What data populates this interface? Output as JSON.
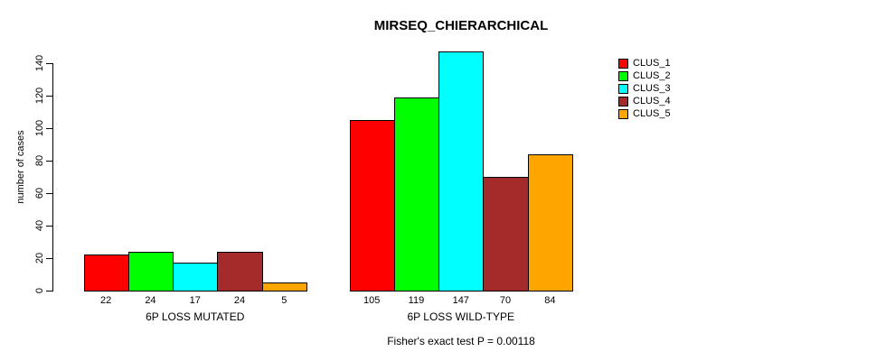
{
  "chart_data": {
    "type": "bar",
    "grouped": true,
    "title": "MIRSEQ_CHIERARCHICAL",
    "xlabel": "",
    "ylabel": "number of cases",
    "annotation": "Fisher's exact test P = 0.00118",
    "categories": [
      "6P LOSS MUTATED",
      "6P LOSS WILD-TYPE"
    ],
    "series": [
      {
        "name": "CLUS_1",
        "color": "#FF0000",
        "values": [
          22,
          105
        ]
      },
      {
        "name": "CLUS_2",
        "color": "#00FF00",
        "values": [
          24,
          119
        ]
      },
      {
        "name": "CLUS_3",
        "color": "#00FFFF",
        "values": [
          17,
          147
        ]
      },
      {
        "name": "CLUS_4",
        "color": "#A52A2A",
        "values": [
          24,
          70
        ]
      },
      {
        "name": "CLUS_5",
        "color": "#FFA500",
        "values": [
          5,
          84
        ]
      }
    ],
    "bar_value_labels_shown": true,
    "ylim": [
      0,
      140
    ],
    "yticks": [
      0,
      20,
      40,
      60,
      80,
      100,
      120,
      140
    ],
    "grid": false,
    "legend_position": "top-right",
    "background_color": "#FFFFFF",
    "axis_color": "#000000"
  }
}
